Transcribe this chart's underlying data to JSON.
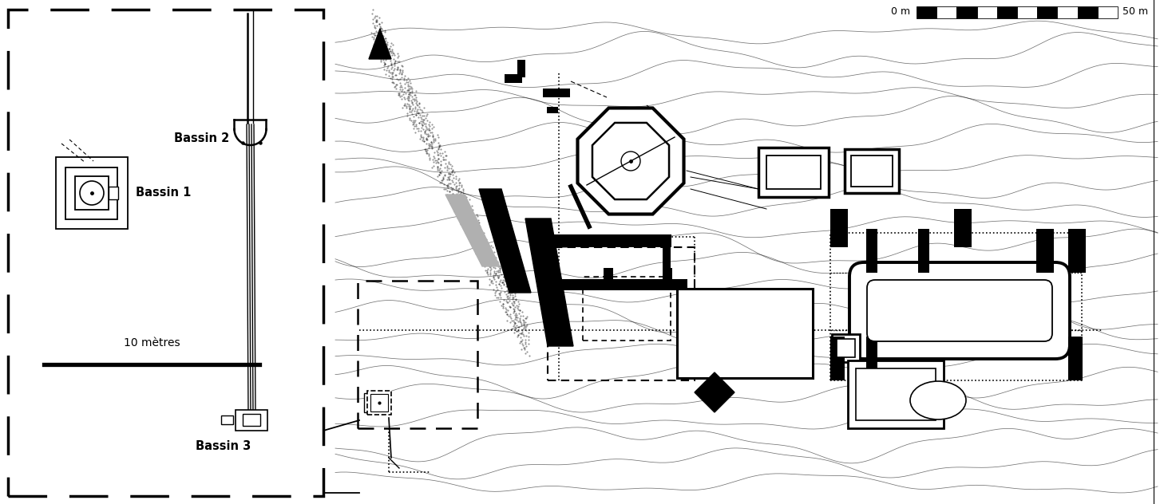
{
  "fig_width": 14.58,
  "fig_height": 6.32,
  "bg_color": "#ffffff",
  "left_panel": {
    "bassin1_label": "Bassin 1",
    "bassin2_label": "Bassin 2",
    "bassin3_label": "Bassin 3",
    "scale_label": "10 mètres"
  },
  "right_panel": {
    "scale_label_0m": "0 m",
    "scale_label_50m": "50 m"
  }
}
